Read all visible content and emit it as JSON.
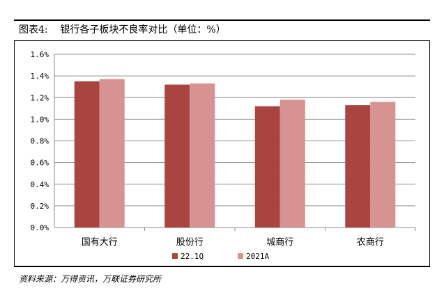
{
  "header": {
    "title": "图表4:    银行各子板块不良率对比（单位：%）"
  },
  "footer": {
    "source": "资料来源：万得资讯，万联证券研究所"
  },
  "chart_data": {
    "type": "bar",
    "title": "银行各子板块不良率对比（单位：%）",
    "categories": [
      "国有大行",
      "股份行",
      "城商行",
      "农商行"
    ],
    "series": [
      {
        "name": "22.1Q",
        "color": "#a94441",
        "values": [
          1.35,
          1.32,
          1.12,
          1.13
        ]
      },
      {
        "name": "2021A",
        "color": "#d69391",
        "values": [
          1.37,
          1.33,
          1.18,
          1.16
        ]
      }
    ],
    "yticks": [
      "0.0%",
      "0.2%",
      "0.4%",
      "0.6%",
      "0.8%",
      "1.0%",
      "1.2%",
      "1.4%",
      "1.6%"
    ],
    "ylim": [
      0,
      1.6
    ],
    "grid": true,
    "legend_position": "bottom"
  }
}
